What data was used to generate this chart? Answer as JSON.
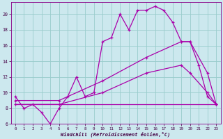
{
  "xlabel": "Windchill (Refroidissement éolien,°C)",
  "bg_color": "#cce8ee",
  "line_color": "#aa00aa",
  "grid_color": "#99cccc",
  "xlim": [
    -0.5,
    23.5
  ],
  "ylim": [
    6,
    21.5
  ],
  "xticks": [
    0,
    1,
    2,
    3,
    4,
    5,
    6,
    7,
    8,
    9,
    10,
    11,
    12,
    13,
    14,
    15,
    16,
    17,
    18,
    19,
    20,
    21,
    22,
    23
  ],
  "yticks": [
    6,
    8,
    10,
    12,
    14,
    16,
    18,
    20
  ],
  "line1_x": [
    0,
    1,
    2,
    3,
    4,
    5,
    6,
    7,
    8,
    9,
    10,
    11,
    12,
    13,
    14,
    15,
    16,
    17,
    18,
    19,
    20,
    21,
    22,
    23
  ],
  "line1_y": [
    9.5,
    8.0,
    8.5,
    7.5,
    6.0,
    8.0,
    9.5,
    12.0,
    9.5,
    10.0,
    16.5,
    17.0,
    20.0,
    18.0,
    20.5,
    20.5,
    21.0,
    20.5,
    19.0,
    16.5,
    16.5,
    13.5,
    9.5,
    8.5
  ],
  "line2_x": [
    0,
    5,
    10,
    15,
    19,
    20,
    22,
    23
  ],
  "line2_y": [
    9.0,
    9.0,
    11.5,
    14.5,
    16.5,
    16.5,
    12.5,
    8.5
  ],
  "line3_x": [
    0,
    5,
    10,
    15,
    19,
    20,
    22,
    23
  ],
  "line3_y": [
    8.5,
    8.5,
    10.0,
    12.5,
    13.5,
    12.5,
    10.0,
    8.5
  ],
  "line4_x": [
    0,
    23
  ],
  "line4_y": [
    8.5,
    8.5
  ]
}
